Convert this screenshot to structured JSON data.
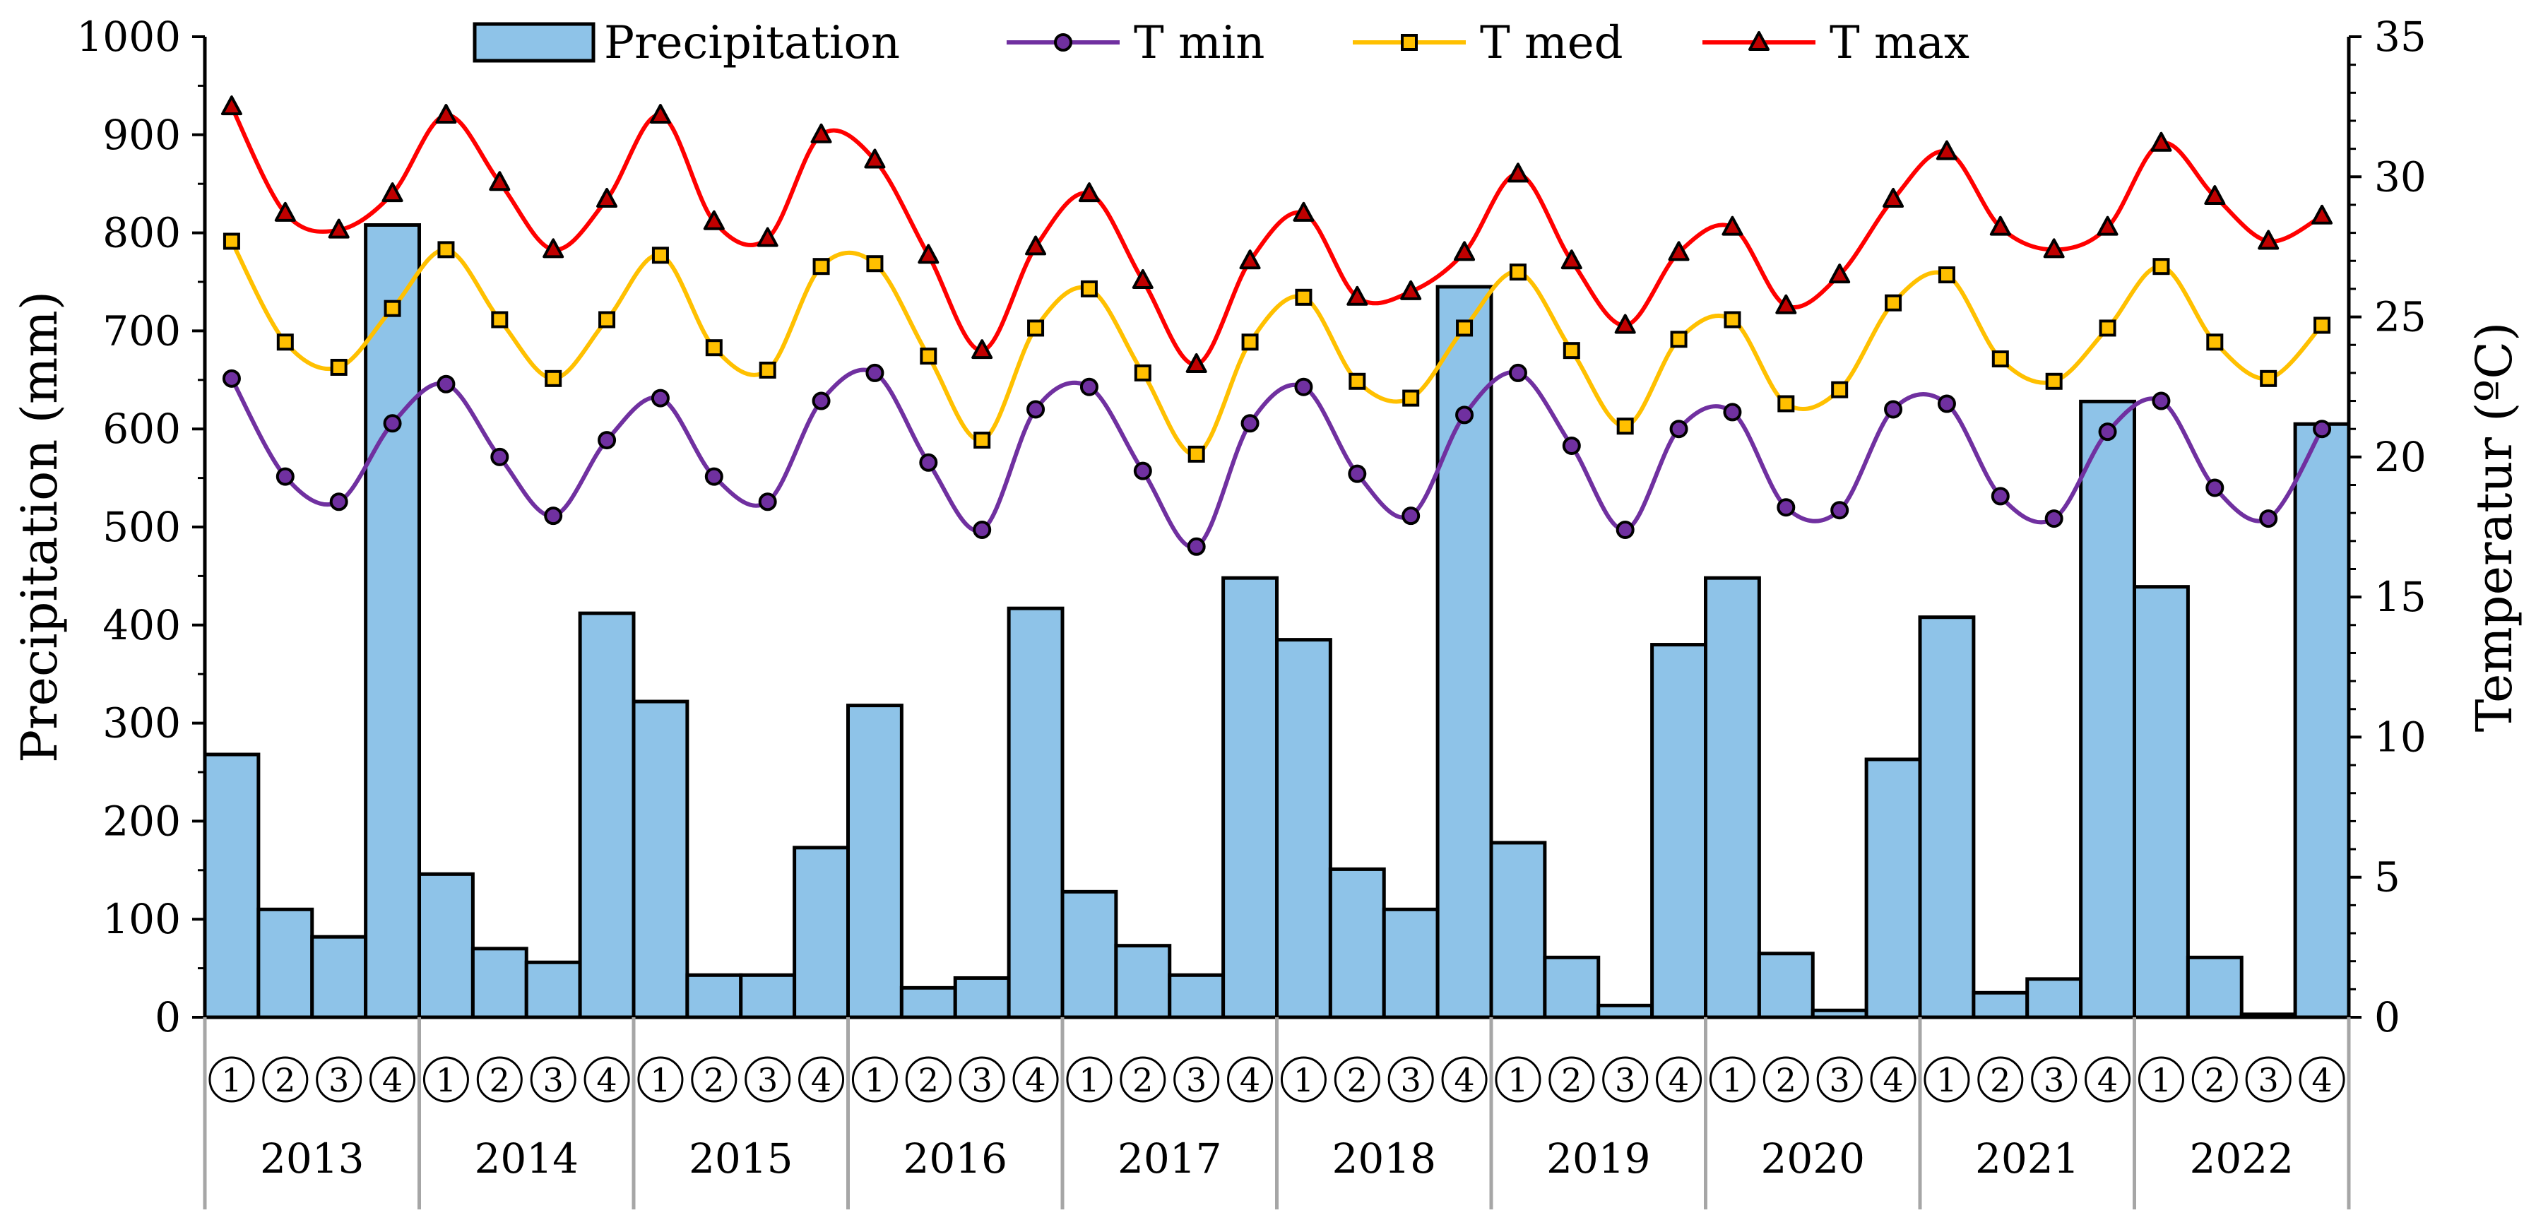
{
  "chart_data": {
    "type": "bar+line",
    "legend": {
      "position": "top",
      "entries": [
        {
          "key": "precipitation",
          "label": "Precipitation"
        },
        {
          "key": "tmin",
          "label": "T min"
        },
        {
          "key": "tmed",
          "label": "T med"
        },
        {
          "key": "tmax",
          "label": "T max"
        }
      ]
    },
    "ylabel_left": "Precipitation (mm)",
    "ylabel_right": "Temperatur (ºC)",
    "y_left_lim": [
      0,
      1000
    ],
    "y_left_ticks": [
      "0",
      "100",
      "200",
      "300",
      "400",
      "500",
      "600",
      "700",
      "800",
      "900",
      "1000"
    ],
    "y_right_lim": [
      0,
      35
    ],
    "y_right_ticks": [
      "0",
      "5",
      "10",
      "15",
      "20",
      "25",
      "30",
      "35"
    ],
    "years": [
      "2013",
      "2014",
      "2015",
      "2016",
      "2017",
      "2018",
      "2019",
      "2020",
      "2021",
      "2022"
    ],
    "quarter_labels": [
      "1",
      "2",
      "3",
      "4"
    ],
    "colors": {
      "precipitation": "#8ec3e8",
      "tmin": "#7030a0",
      "tmed": "#ffc000",
      "tmax": "#ff0000",
      "tmax_marker": "#c00000",
      "axis": "#000000",
      "category_grid": "#a6a6a6"
    },
    "series": [
      {
        "name": "Precipitation",
        "axis": "left",
        "values": [
          268,
          110,
          82,
          808,
          146,
          70,
          56,
          412,
          322,
          43,
          43,
          173,
          318,
          30,
          40,
          417,
          128,
          73,
          43,
          448,
          385,
          151,
          110,
          745,
          178,
          61,
          12,
          380,
          448,
          65,
          7,
          263,
          408,
          25,
          39,
          628,
          439,
          61,
          3,
          605
        ]
      },
      {
        "name": "T min",
        "axis": "right",
        "values": [
          22.8,
          19.3,
          18.4,
          21.2,
          22.6,
          20.0,
          17.9,
          20.6,
          22.1,
          19.3,
          18.4,
          22.0,
          23.0,
          19.8,
          17.4,
          21.7,
          22.5,
          19.5,
          16.8,
          21.2,
          22.5,
          19.4,
          17.9,
          21.5,
          23.0,
          20.4,
          17.4,
          21.0,
          21.6,
          18.2,
          18.1,
          21.7,
          21.9,
          18.6,
          17.8,
          20.9,
          22.0,
          18.9,
          17.8,
          21.0
        ]
      },
      {
        "name": "T med",
        "axis": "right",
        "values": [
          27.7,
          24.1,
          23.2,
          25.3,
          27.4,
          24.9,
          22.8,
          24.9,
          27.2,
          23.9,
          23.1,
          26.8,
          26.9,
          23.6,
          20.6,
          24.6,
          26.0,
          23.0,
          20.1,
          24.1,
          25.7,
          22.7,
          22.1,
          24.6,
          26.6,
          23.8,
          21.1,
          24.2,
          24.9,
          21.9,
          22.4,
          25.5,
          26.5,
          23.5,
          22.7,
          24.6,
          26.8,
          24.1,
          22.8,
          24.7
        ]
      },
      {
        "name": "T max",
        "axis": "right",
        "values": [
          32.5,
          28.7,
          28.1,
          29.4,
          32.2,
          29.8,
          27.4,
          29.2,
          32.2,
          28.4,
          27.8,
          31.5,
          30.6,
          27.2,
          23.8,
          27.5,
          29.4,
          26.3,
          23.3,
          27.0,
          28.7,
          25.7,
          25.9,
          27.3,
          30.1,
          27.0,
          24.7,
          27.3,
          28.2,
          25.4,
          26.5,
          29.2,
          30.9,
          28.2,
          27.4,
          28.2,
          31.2,
          29.3,
          27.7,
          28.6
        ]
      }
    ]
  }
}
